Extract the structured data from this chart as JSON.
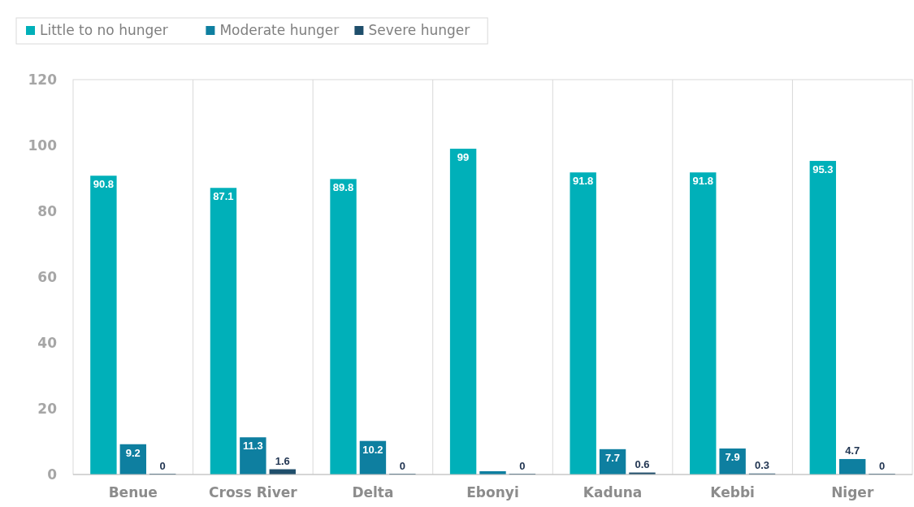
{
  "chart_data": {
    "type": "bar",
    "categories": [
      "Benue",
      "Cross River",
      "Delta",
      "Ebonyi",
      "Kaduna",
      "Kebbi",
      "Niger"
    ],
    "series": [
      {
        "name": "Little to no hunger",
        "color": "#00b0b9",
        "values": [
          90.8,
          87.1,
          89.8,
          99,
          91.8,
          91.8,
          95.3
        ],
        "value_labels": [
          "90.8",
          "87.1",
          "89.8",
          "99",
          "91.8",
          "91.8",
          "95.3"
        ]
      },
      {
        "name": "Moderate hunger",
        "color": "#0e7fa0",
        "values": [
          9.2,
          11.3,
          10.2,
          1,
          7.7,
          7.9,
          4.7
        ],
        "value_labels": [
          "9.2",
          "11.3",
          "10.2",
          null,
          "7.7",
          "7.9",
          "4.7"
        ]
      },
      {
        "name": "Severe hunger",
        "color": "#1f4e6b",
        "values": [
          0,
          1.6,
          0,
          0,
          0.6,
          0.3,
          0
        ],
        "value_labels": [
          "0",
          "1.6",
          "0",
          "0",
          "0.6",
          "0.3",
          "0"
        ]
      }
    ],
    "ylim": [
      0,
      120
    ],
    "yticks": [
      0,
      20,
      40,
      60,
      80,
      100,
      120
    ],
    "grid": "x",
    "legend": "top left"
  }
}
